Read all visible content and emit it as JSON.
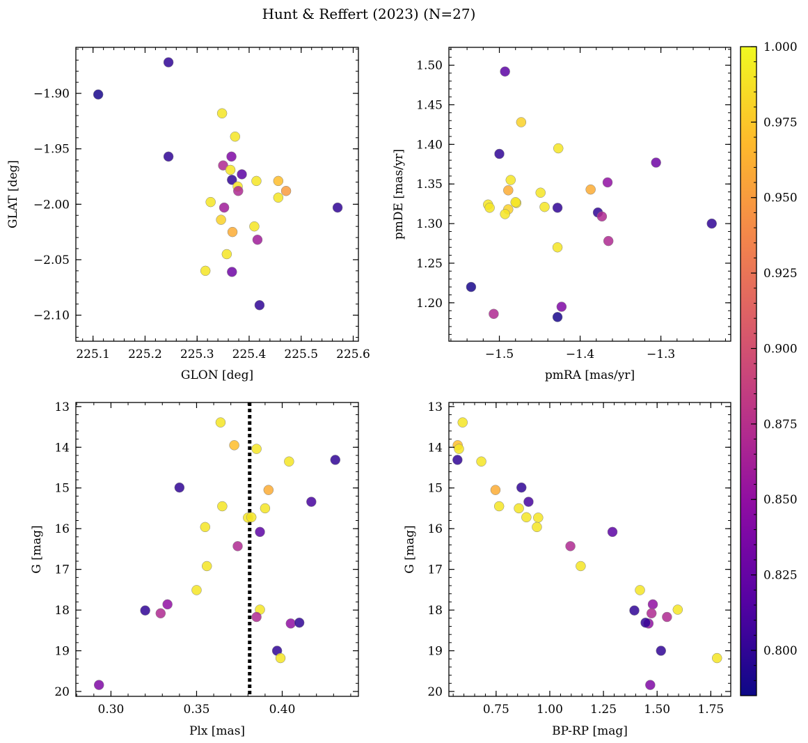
{
  "title": "Hunt & Reffert (2023) (N=27)",
  "colorbar": {
    "min": 0.785,
    "max": 1.0,
    "ticks": [
      0.8,
      0.825,
      0.85,
      0.875,
      0.9,
      0.925,
      0.95,
      0.975,
      1.0
    ],
    "tick_labels": [
      "0.800",
      "0.825",
      "0.850",
      "0.875",
      "0.900",
      "0.925",
      "0.950",
      "0.975",
      "1.000"
    ],
    "colormap": "plasma"
  },
  "chart_data": [
    {
      "type": "scatter",
      "xlabel": "GLON [deg]",
      "ylabel": "GLAT [deg]",
      "xlim": [
        225.067,
        225.61
      ],
      "ylim": [
        -2.1235,
        -1.8585
      ],
      "xticks": [
        225.1,
        225.2,
        225.3,
        225.4,
        225.5,
        225.6
      ],
      "xtick_labels": [
        "225.1",
        "225.2",
        "225.3",
        "225.4",
        "225.5",
        "225.6"
      ],
      "yticks": [
        -1.9,
        -1.95,
        -2.0,
        -2.05,
        -2.1
      ],
      "ytick_labels": [
        "−1.90",
        "−1.95",
        "−2.00",
        "−2.05",
        "−2.10"
      ],
      "points": [
        {
          "x": 225.11,
          "y": -1.901,
          "c": 0.79
        },
        {
          "x": 225.245,
          "y": -1.872,
          "c": 0.8
        },
        {
          "x": 225.245,
          "y": -1.957,
          "c": 0.8
        },
        {
          "x": 225.348,
          "y": -1.918,
          "c": 0.99
        },
        {
          "x": 225.373,
          "y": -1.939,
          "c": 0.99
        },
        {
          "x": 225.35,
          "y": -1.965,
          "c": 0.87
        },
        {
          "x": 225.366,
          "y": -1.957,
          "c": 0.84
        },
        {
          "x": 225.364,
          "y": -1.969,
          "c": 0.99
        },
        {
          "x": 225.367,
          "y": -1.978,
          "c": 0.8
        },
        {
          "x": 225.386,
          "y": -1.973,
          "c": 0.82
        },
        {
          "x": 225.378,
          "y": -1.984,
          "c": 0.99
        },
        {
          "x": 225.379,
          "y": -1.988,
          "c": 0.87
        },
        {
          "x": 225.414,
          "y": -1.979,
          "c": 0.99
        },
        {
          "x": 225.456,
          "y": -1.979,
          "c": 0.97
        },
        {
          "x": 225.471,
          "y": -1.988,
          "c": 0.95
        },
        {
          "x": 225.456,
          "y": -1.994,
          "c": 0.99
        },
        {
          "x": 225.326,
          "y": -1.998,
          "c": 0.99
        },
        {
          "x": 225.352,
          "y": -2.003,
          "c": 0.86
        },
        {
          "x": 225.346,
          "y": -2.014,
          "c": 0.98
        },
        {
          "x": 225.41,
          "y": -2.02,
          "c": 0.99
        },
        {
          "x": 225.368,
          "y": -2.025,
          "c": 0.96
        },
        {
          "x": 225.416,
          "y": -2.032,
          "c": 0.86
        },
        {
          "x": 225.357,
          "y": -2.045,
          "c": 0.99
        },
        {
          "x": 225.316,
          "y": -2.06,
          "c": 0.99
        },
        {
          "x": 225.367,
          "y": -2.061,
          "c": 0.83
        },
        {
          "x": 225.42,
          "y": -2.091,
          "c": 0.8
        },
        {
          "x": 225.57,
          "y": -2.003,
          "c": 0.8
        }
      ]
    },
    {
      "type": "scatter",
      "xlabel": "pmRA [mas/yr]",
      "ylabel": "pmDE [mas/yr]",
      "xlim": [
        -1.5625,
        -1.2135
      ],
      "ylim": [
        1.1515,
        1.5225
      ],
      "xticks": [
        -1.5,
        -1.4,
        -1.3
      ],
      "xtick_labels": [
        "−1.5",
        "−1.4",
        "−1.3"
      ],
      "yticks": [
        1.2,
        1.25,
        1.3,
        1.35,
        1.4,
        1.45,
        1.5
      ],
      "ytick_labels": [
        "1.20",
        "1.25",
        "1.30",
        "1.35",
        "1.40",
        "1.45",
        "1.50"
      ],
      "points": [
        {
          "x": -1.493,
          "y": 1.492,
          "c": 0.82
        },
        {
          "x": -1.473,
          "y": 1.428,
          "c": 0.98
        },
        {
          "x": -1.5,
          "y": 1.388,
          "c": 0.8
        },
        {
          "x": -1.427,
          "y": 1.395,
          "c": 0.99
        },
        {
          "x": -1.306,
          "y": 1.377,
          "c": 0.83
        },
        {
          "x": -1.486,
          "y": 1.355,
          "c": 0.99
        },
        {
          "x": -1.489,
          "y": 1.342,
          "c": 0.96
        },
        {
          "x": -1.449,
          "y": 1.339,
          "c": 0.99
        },
        {
          "x": -1.387,
          "y": 1.343,
          "c": 0.96
        },
        {
          "x": -1.366,
          "y": 1.352,
          "c": 0.85
        },
        {
          "x": -1.514,
          "y": 1.324,
          "c": 0.99
        },
        {
          "x": -1.512,
          "y": 1.32,
          "c": 0.99
        },
        {
          "x": -1.479,
          "y": 1.326,
          "c": 0.99
        },
        {
          "x": -1.489,
          "y": 1.318,
          "c": 0.98
        },
        {
          "x": -1.493,
          "y": 1.312,
          "c": 0.99
        },
        {
          "x": -1.444,
          "y": 1.321,
          "c": 0.99
        },
        {
          "x": -1.428,
          "y": 1.32,
          "c": 0.8
        },
        {
          "x": -1.378,
          "y": 1.314,
          "c": 0.8
        },
        {
          "x": -1.373,
          "y": 1.309,
          "c": 0.87
        },
        {
          "x": -1.365,
          "y": 1.278,
          "c": 0.87
        },
        {
          "x": -1.237,
          "y": 1.3,
          "c": 0.8
        },
        {
          "x": -1.428,
          "y": 1.27,
          "c": 0.99
        },
        {
          "x": -1.535,
          "y": 1.22,
          "c": 0.79
        },
        {
          "x": -1.507,
          "y": 1.186,
          "c": 0.87
        },
        {
          "x": -1.423,
          "y": 1.195,
          "c": 0.84
        },
        {
          "x": -1.428,
          "y": 1.182,
          "c": 0.79
        },
        {
          "x": -1.48,
          "y": 1.327,
          "c": 0.99
        }
      ]
    },
    {
      "type": "scatter",
      "xlabel": "Plx [mas]",
      "ylabel": "G [mag]",
      "xlim": [
        0.2795,
        0.4445
      ],
      "ylim": [
        20.12,
        12.9
      ],
      "y_inverted": true,
      "vline": 0.381,
      "xticks": [
        0.3,
        0.35,
        0.4
      ],
      "xtick_labels": [
        "0.30",
        "0.35",
        "0.40"
      ],
      "yticks": [
        13,
        14,
        15,
        16,
        17,
        18,
        19,
        20
      ],
      "ytick_labels": [
        "13",
        "14",
        "15",
        "16",
        "17",
        "18",
        "19",
        "20"
      ],
      "points": [
        {
          "x": 0.364,
          "y": 13.39,
          "c": 0.99
        },
        {
          "x": 0.372,
          "y": 13.95,
          "c": 0.97
        },
        {
          "x": 0.385,
          "y": 14.04,
          "c": 0.99
        },
        {
          "x": 0.404,
          "y": 14.35,
          "c": 0.99
        },
        {
          "x": 0.431,
          "y": 14.31,
          "c": 0.8
        },
        {
          "x": 0.34,
          "y": 14.99,
          "c": 0.8
        },
        {
          "x": 0.392,
          "y": 15.05,
          "c": 0.96
        },
        {
          "x": 0.417,
          "y": 15.34,
          "c": 0.81
        },
        {
          "x": 0.365,
          "y": 15.45,
          "c": 0.99
        },
        {
          "x": 0.39,
          "y": 15.5,
          "c": 0.99
        },
        {
          "x": 0.38,
          "y": 15.73,
          "c": 0.99
        },
        {
          "x": 0.382,
          "y": 15.72,
          "c": 0.99
        },
        {
          "x": 0.355,
          "y": 15.96,
          "c": 0.99
        },
        {
          "x": 0.387,
          "y": 16.08,
          "c": 0.82
        },
        {
          "x": 0.374,
          "y": 16.43,
          "c": 0.87
        },
        {
          "x": 0.356,
          "y": 16.92,
          "c": 0.99
        },
        {
          "x": 0.35,
          "y": 17.51,
          "c": 0.99
        },
        {
          "x": 0.333,
          "y": 17.86,
          "c": 0.85
        },
        {
          "x": 0.32,
          "y": 18.01,
          "c": 0.8
        },
        {
          "x": 0.329,
          "y": 18.08,
          "c": 0.87
        },
        {
          "x": 0.387,
          "y": 17.99,
          "c": 0.99
        },
        {
          "x": 0.385,
          "y": 18.17,
          "c": 0.87
        },
        {
          "x": 0.405,
          "y": 18.33,
          "c": 0.85
        },
        {
          "x": 0.41,
          "y": 18.31,
          "c": 0.8
        },
        {
          "x": 0.397,
          "y": 19.0,
          "c": 0.8
        },
        {
          "x": 0.399,
          "y": 19.18,
          "c": 0.99
        },
        {
          "x": 0.293,
          "y": 19.84,
          "c": 0.84
        }
      ]
    },
    {
      "type": "scatter",
      "xlabel": "BP-RP [mag]",
      "ylabel": "G [mag]",
      "xlim": [
        0.53,
        1.843
      ],
      "ylim": [
        20.12,
        12.9
      ],
      "y_inverted": true,
      "xticks": [
        0.75,
        1.0,
        1.25,
        1.5,
        1.75
      ],
      "xtick_labels": [
        "0.75",
        "1.00",
        "1.25",
        "1.50",
        "1.75"
      ],
      "yticks": [
        13,
        14,
        15,
        16,
        17,
        18,
        19,
        20
      ],
      "ytick_labels": [
        "13",
        "14",
        "15",
        "16",
        "17",
        "18",
        "19",
        "20"
      ],
      "points": [
        {
          "x": 0.594,
          "y": 13.39,
          "c": 0.99
        },
        {
          "x": 0.571,
          "y": 13.95,
          "c": 0.97
        },
        {
          "x": 0.577,
          "y": 14.04,
          "c": 0.99
        },
        {
          "x": 0.57,
          "y": 14.31,
          "c": 0.8
        },
        {
          "x": 0.681,
          "y": 14.35,
          "c": 0.99
        },
        {
          "x": 0.747,
          "y": 15.05,
          "c": 0.96
        },
        {
          "x": 0.868,
          "y": 14.99,
          "c": 0.8
        },
        {
          "x": 0.901,
          "y": 15.34,
          "c": 0.81
        },
        {
          "x": 0.764,
          "y": 15.45,
          "c": 0.99
        },
        {
          "x": 0.856,
          "y": 15.5,
          "c": 0.99
        },
        {
          "x": 0.891,
          "y": 15.72,
          "c": 0.99
        },
        {
          "x": 0.946,
          "y": 15.73,
          "c": 0.99
        },
        {
          "x": 0.94,
          "y": 15.96,
          "c": 0.99
        },
        {
          "x": 1.292,
          "y": 16.08,
          "c": 0.82
        },
        {
          "x": 1.096,
          "y": 16.43,
          "c": 0.87
        },
        {
          "x": 1.144,
          "y": 16.92,
          "c": 0.99
        },
        {
          "x": 1.42,
          "y": 17.51,
          "c": 0.99
        },
        {
          "x": 1.48,
          "y": 17.86,
          "c": 0.85
        },
        {
          "x": 1.394,
          "y": 18.01,
          "c": 0.8
        },
        {
          "x": 1.474,
          "y": 18.08,
          "c": 0.87
        },
        {
          "x": 1.596,
          "y": 17.99,
          "c": 0.99
        },
        {
          "x": 1.546,
          "y": 18.17,
          "c": 0.87
        },
        {
          "x": 1.46,
          "y": 18.33,
          "c": 0.85
        },
        {
          "x": 1.446,
          "y": 18.31,
          "c": 0.8
        },
        {
          "x": 1.518,
          "y": 19.0,
          "c": 0.8
        },
        {
          "x": 1.779,
          "y": 19.18,
          "c": 0.99
        },
        {
          "x": 1.468,
          "y": 19.84,
          "c": 0.84
        }
      ]
    }
  ]
}
